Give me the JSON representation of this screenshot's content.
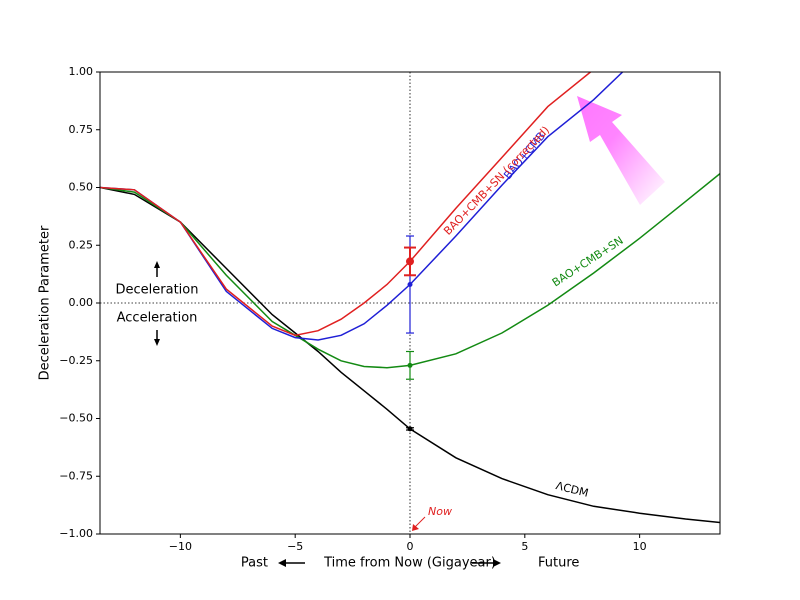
{
  "chart_data": {
    "type": "line",
    "x_label": "Time from Now (Gigayear)",
    "past_label": "Past",
    "future_label": "Future",
    "y_label": "Deceleration Parameter",
    "annotations": {
      "deceleration": "Deceleration",
      "acceleration": "Acceleration",
      "now": "Now"
    },
    "xlim": [
      -13.5,
      13.5
    ],
    "ylim": [
      -1,
      1
    ],
    "xticks": [
      {
        "value": -10,
        "label": "−10"
      },
      {
        "value": -5,
        "label": "−5"
      },
      0,
      5,
      10
    ],
    "yticks": [
      {
        "value": -1,
        "label": "−1.00"
      },
      {
        "value": -0.75,
        "label": "−0.75"
      },
      {
        "value": -0.5,
        "label": "−0.50"
      },
      {
        "value": -0.25,
        "label": "−0.25"
      },
      {
        "value": 0,
        "label": "0.00"
      },
      {
        "value": 0.25,
        "label": "0.25"
      },
      {
        "value": 0.5,
        "label": "0.50"
      },
      {
        "value": 0.75,
        "label": "0.75"
      },
      {
        "value": 1,
        "label": "1.00"
      }
    ],
    "series": [
      {
        "name": "ΛCDM",
        "color": "#000000",
        "x": [
          -13.5,
          -12,
          -10,
          -8,
          -6,
          -5,
          -4,
          -3,
          -2,
          -1,
          0,
          2,
          4,
          6,
          8,
          10,
          12,
          13.5
        ],
        "values": [
          0.5,
          0.47,
          0.35,
          0.15,
          -0.05,
          -0.13,
          -0.21,
          -0.3,
          -0.38,
          -0.46,
          -0.545,
          -0.67,
          -0.76,
          -0.83,
          -0.88,
          -0.91,
          -0.935,
          -0.95
        ],
        "point": {
          "x": 0,
          "y": -0.545,
          "error": 0.005
        }
      },
      {
        "name": "BAO+CMB+SN",
        "color": "#138a13",
        "x": [
          -13.5,
          -12,
          -10,
          -8,
          -6,
          -5,
          -4,
          -3,
          -2,
          -1,
          0,
          2,
          4,
          6,
          8,
          10,
          12,
          13.5
        ],
        "values": [
          0.5,
          0.48,
          0.35,
          0.12,
          -0.08,
          -0.14,
          -0.2,
          -0.25,
          -0.275,
          -0.28,
          -0.27,
          -0.22,
          -0.13,
          -0.01,
          0.13,
          0.28,
          0.44,
          0.56
        ],
        "point": {
          "x": 0,
          "y": -0.27,
          "error": 0.06
        }
      },
      {
        "name": "BAO+CMB",
        "color": "#1f1fd6",
        "x": [
          -13.5,
          -12,
          -10,
          -8,
          -6,
          -5,
          -4,
          -3,
          -2,
          -1,
          0,
          2,
          4,
          6,
          8,
          9.26
        ],
        "values": [
          0.5,
          0.49,
          0.35,
          0.05,
          -0.11,
          -0.15,
          -0.16,
          -0.14,
          -0.09,
          -0.01,
          0.08,
          0.29,
          0.51,
          0.72,
          0.88,
          1
        ],
        "point": {
          "x": 0,
          "y": 0.08,
          "error": 0.21
        }
      },
      {
        "name": "BAO+CMB+SN (corrected)",
        "color": "#e02020",
        "x": [
          -13.5,
          -12,
          -10,
          -8,
          -6,
          -5,
          -4,
          -3,
          -2,
          -1,
          0,
          2,
          4,
          6,
          7.86
        ],
        "values": [
          0.5,
          0.49,
          0.35,
          0.06,
          -0.1,
          -0.14,
          -0.12,
          -0.07,
          0.0,
          0.08,
          0.18,
          0.41,
          0.63,
          0.85,
          1
        ],
        "point": {
          "x": 0,
          "y": 0.18,
          "error": 0.06
        }
      }
    ]
  }
}
